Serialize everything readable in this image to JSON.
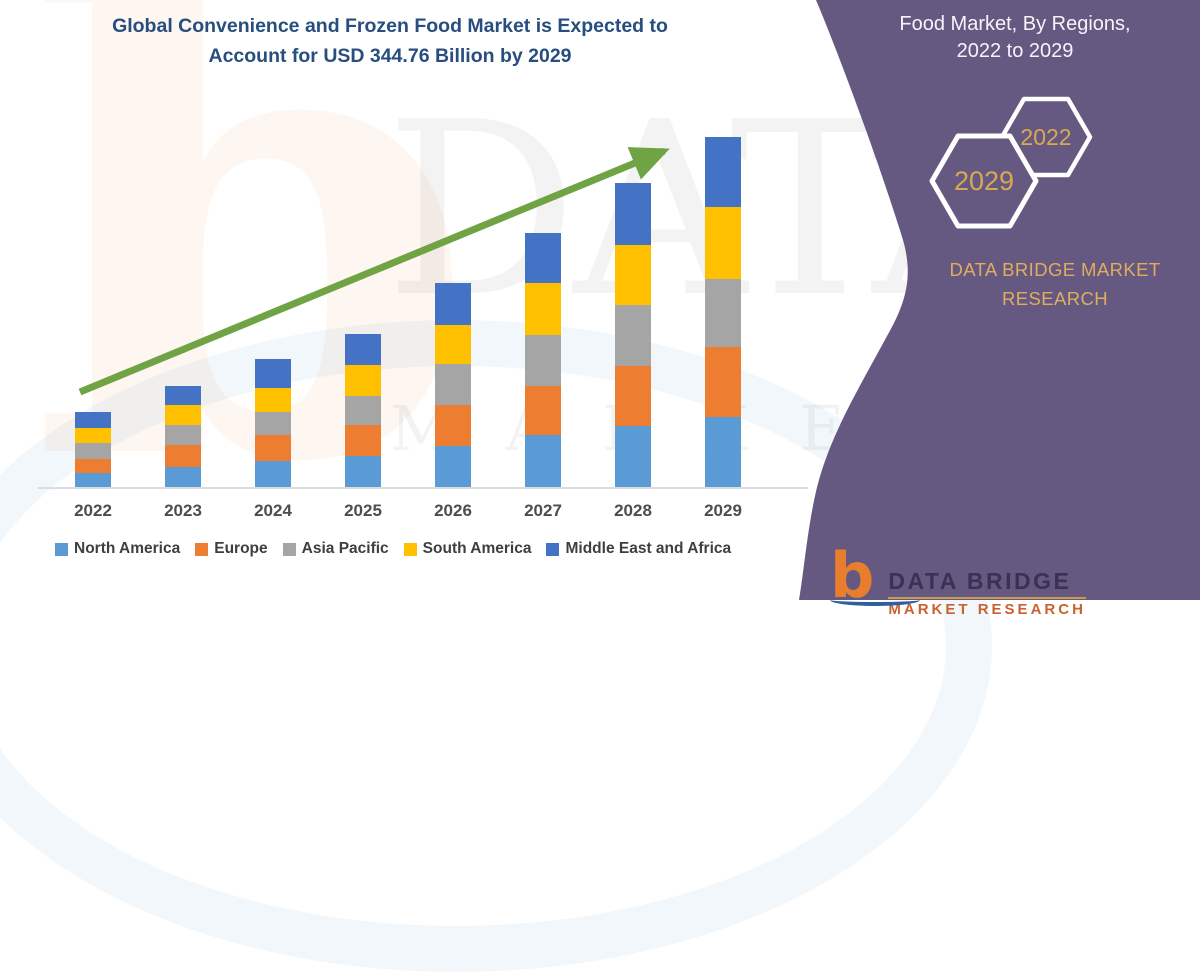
{
  "header": {
    "title_line1": "Global Convenience and Frozen Food Market is Expected to",
    "title_line2": "Account for USD 344.76 Billion by 2029",
    "title_color": "#274E7F"
  },
  "chart_data": {
    "type": "bar",
    "stacked": true,
    "title": "Global Convenience and Frozen Food Market is Expected to Account for USD 344.76 Billion by 2029",
    "categories": [
      "2022",
      "2023",
      "2024",
      "2025",
      "2026",
      "2027",
      "2028",
      "2029"
    ],
    "series": [
      {
        "name": "North America",
        "color": "#5B9BD5",
        "values": [
          14,
          20,
          26,
          31,
          40,
          51,
          60,
          69
        ]
      },
      {
        "name": "Europe",
        "color": "#ED7D31",
        "values": [
          14,
          21,
          25,
          30,
          41,
          49,
          59,
          69
        ]
      },
      {
        "name": "Asia Pacific",
        "color": "#A5A5A5",
        "values": [
          15,
          20,
          23,
          29,
          40,
          50,
          60,
          67
        ]
      },
      {
        "name": "South America",
        "color": "#FFC000",
        "values": [
          15,
          20,
          24,
          30,
          39,
          51,
          60,
          71
        ]
      },
      {
        "name": "Middle East and Africa",
        "color": "#4472C4",
        "values": [
          16,
          19,
          28,
          31,
          41,
          49,
          61,
          69
        ]
      }
    ],
    "totals_usd_billion_estimated": [
      74,
      100,
      126,
      151,
      201,
      250,
      300,
      345
    ],
    "units": "USD Billion (estimated from bar heights; 2029 total stated as 344.76)",
    "xlabel": "",
    "ylabel": "",
    "y_axis_visible": false,
    "gridlines": false,
    "legend_position": "bottom",
    "trend_arrow": true,
    "trend_arrow_color": "#6FA344"
  },
  "sidebar": {
    "heading_line1": "Food Market, By Regions,",
    "heading_line2": "2022 to 2029",
    "hexagon_small_label": "2022",
    "hexagon_large_label": "2029",
    "brand_line1": "DATA BRIDGE MARKET",
    "brand_line2": "RESEARCH",
    "bg_color": "#665981",
    "accent_color": "#D9A853"
  },
  "footer_logo": {
    "letter": "b",
    "brand": "DATA BRIDGE",
    "subtitle": "MARKET RESEARCH"
  },
  "watermarks": {
    "letter": "b",
    "big_text": "DATA BRIDGE",
    "diagonal_text": "MARKET RE"
  }
}
